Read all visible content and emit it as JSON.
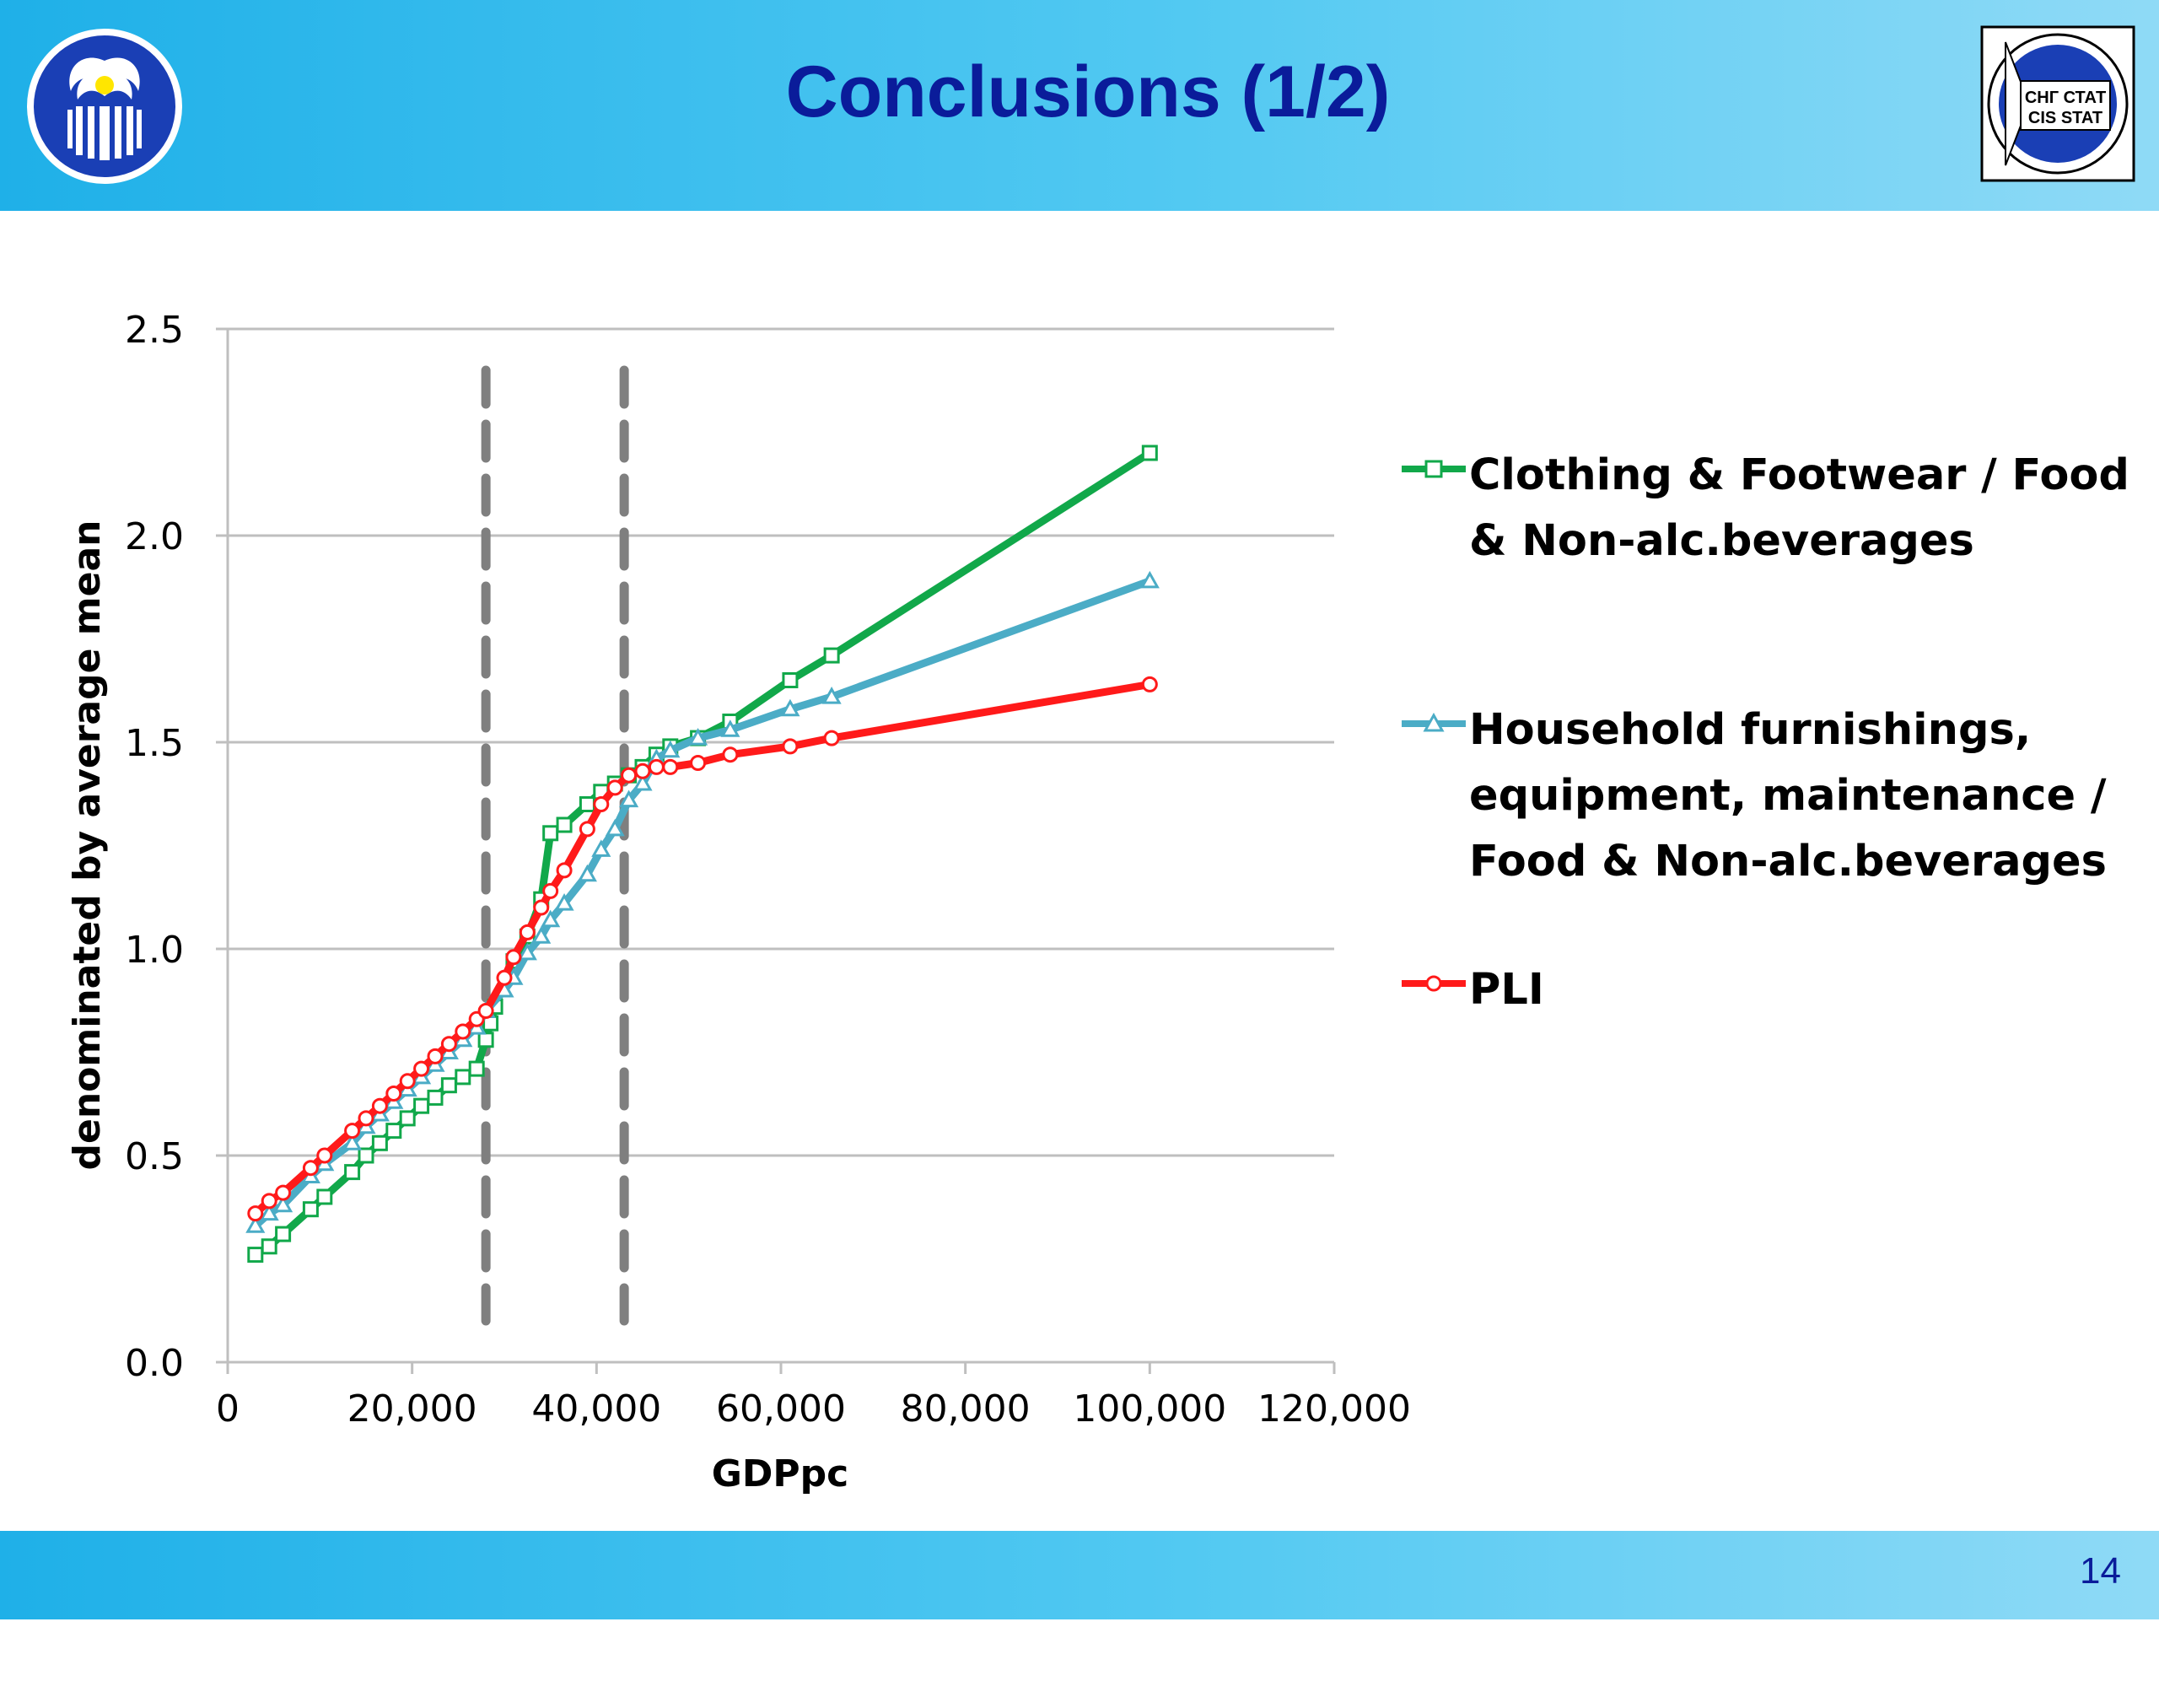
{
  "slide": {
    "title": "Conclusions (1/2)",
    "page_number": "14",
    "logo_right_lines": [
      "СНГ СТАТ",
      "CIS STAT"
    ]
  },
  "colors": {
    "header": "#2bb7ea",
    "title": "#0a1c9a",
    "clothing": "#11a84a",
    "household": "#4bacc6",
    "pli": "#ff1a1a",
    "grid": "#bfbfbf",
    "dash": "#7f7f7f"
  },
  "chart_data": {
    "type": "line",
    "xlabel": "GDPpc",
    "ylabel": "denominated by average mean",
    "xlim": [
      0,
      120000
    ],
    "ylim": [
      0,
      2.5
    ],
    "x_ticks": [
      0,
      20000,
      40000,
      60000,
      80000,
      100000,
      120000
    ],
    "x_tick_labels": [
      "0",
      "20,000",
      "40,000",
      "60,000",
      "80,000",
      "100,000",
      "120,000"
    ],
    "y_ticks": [
      0.0,
      0.5,
      1.0,
      1.5,
      2.0,
      2.5
    ],
    "y_tick_labels": [
      "0.0",
      "0.5",
      "1.0",
      "1.5",
      "2.0",
      "2.5"
    ],
    "grid": true,
    "vertical_reference_lines": [
      28000,
      43000
    ],
    "legend_position": "right",
    "series": [
      {
        "name": "Clothing & Footwear / Food & Non-alc.beverages",
        "color_key": "clothing",
        "marker": "square",
        "x": [
          3000,
          4500,
          6000,
          9000,
          10500,
          13500,
          15000,
          16500,
          18000,
          19500,
          21000,
          22500,
          24000,
          25500,
          27000,
          28000,
          28500,
          29000,
          31000,
          32500,
          34000,
          35000,
          36500,
          39000,
          40500,
          42000,
          43500,
          45000,
          46500,
          48000,
          51000,
          54500,
          61000,
          65500,
          100000
        ],
        "y": [
          0.26,
          0.28,
          0.31,
          0.37,
          0.4,
          0.46,
          0.5,
          0.53,
          0.56,
          0.59,
          0.62,
          0.64,
          0.67,
          0.69,
          0.71,
          0.78,
          0.82,
          0.86,
          0.97,
          1.03,
          1.12,
          1.28,
          1.3,
          1.35,
          1.38,
          1.4,
          1.42,
          1.44,
          1.47,
          1.49,
          1.51,
          1.55,
          1.65,
          1.71,
          2.2
        ]
      },
      {
        "name": "Household furnishings, equipment, maintenance / Food & Non-alc.beverages",
        "color_key": "household",
        "marker": "triangle",
        "x": [
          3000,
          4500,
          6000,
          9000,
          10500,
          13500,
          15000,
          16500,
          18000,
          19500,
          21000,
          22500,
          24000,
          25500,
          27000,
          28000,
          30000,
          31000,
          32500,
          34000,
          35000,
          36500,
          39000,
          40500,
          42000,
          43500,
          45000,
          46500,
          48000,
          51000,
          54500,
          61000,
          65500,
          100000
        ],
        "y": [
          0.33,
          0.36,
          0.38,
          0.45,
          0.48,
          0.53,
          0.57,
          0.6,
          0.63,
          0.66,
          0.69,
          0.72,
          0.75,
          0.78,
          0.81,
          0.85,
          0.9,
          0.93,
          0.99,
          1.03,
          1.07,
          1.11,
          1.18,
          1.24,
          1.29,
          1.36,
          1.4,
          1.46,
          1.48,
          1.51,
          1.53,
          1.58,
          1.61,
          1.89
        ]
      },
      {
        "name": "PLI",
        "color_key": "pli",
        "marker": "circle",
        "x": [
          3000,
          4500,
          6000,
          9000,
          10500,
          13500,
          15000,
          16500,
          18000,
          19500,
          21000,
          22500,
          24000,
          25500,
          27000,
          28000,
          30000,
          31000,
          32500,
          34000,
          35000,
          36500,
          39000,
          40500,
          42000,
          43500,
          45000,
          46500,
          48000,
          51000,
          54500,
          61000,
          65500,
          100000
        ],
        "y": [
          0.36,
          0.39,
          0.41,
          0.47,
          0.5,
          0.56,
          0.59,
          0.62,
          0.65,
          0.68,
          0.71,
          0.74,
          0.77,
          0.8,
          0.83,
          0.85,
          0.93,
          0.98,
          1.04,
          1.1,
          1.14,
          1.19,
          1.29,
          1.35,
          1.39,
          1.42,
          1.43,
          1.44,
          1.44,
          1.45,
          1.47,
          1.49,
          1.51,
          1.64
        ]
      }
    ]
  }
}
